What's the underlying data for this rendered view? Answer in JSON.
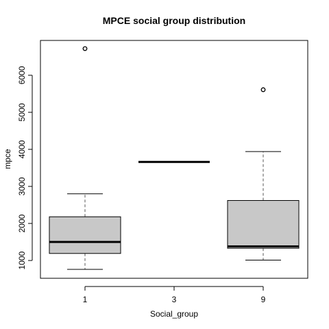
{
  "chart_data": {
    "type": "boxplot",
    "title": "MPCE social group distribution",
    "xlabel": "Social_group",
    "ylabel": "mpce",
    "categories": [
      "1",
      "3",
      "9"
    ],
    "ylim": [
      520,
      6940
    ],
    "yticks": [
      1000,
      2000,
      3000,
      4000,
      5000,
      6000
    ],
    "yticklabels": [
      "1000",
      "2000",
      "3000",
      "4000",
      "5000",
      "6000"
    ],
    "grid": false,
    "legend": "none",
    "boxes": [
      {
        "category": "1",
        "whisker_low": 760,
        "q1": 1190,
        "median": 1500,
        "q3": 2180,
        "whisker_high": 2800,
        "outliers": [
          6720
        ]
      },
      {
        "category": "3",
        "whisker_low": 3660,
        "q1": 3660,
        "median": 3660,
        "q3": 3660,
        "whisker_high": 3660,
        "outliers": []
      },
      {
        "category": "9",
        "whisker_low": 1010,
        "q1": 1330,
        "median": 1380,
        "q3": 2620,
        "whisker_high": 3940,
        "outliers": [
          5610
        ]
      }
    ],
    "colors": {
      "box_fill": "#c8c8c8",
      "line": "#000000",
      "whisker": "#555555"
    }
  }
}
